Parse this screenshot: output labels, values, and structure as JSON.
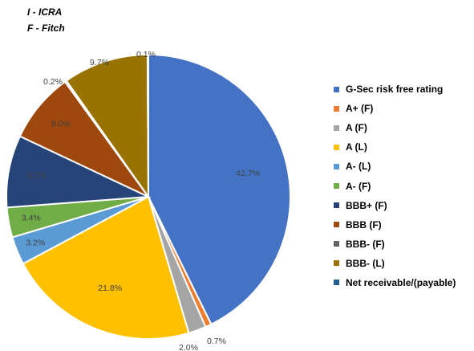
{
  "notes": [
    "I  - ICRA",
    "F - Fitch"
  ],
  "chart_data": {
    "type": "pie",
    "title": "",
    "legend_position": "right",
    "slices": [
      {
        "label": "G-Sec risk free rating",
        "value": 42.7,
        "display": "42.7%",
        "color": "#4472C4"
      },
      {
        "label": "A+ (F)",
        "value": 0.7,
        "display": "0.7%",
        "color": "#ED7D31"
      },
      {
        "label": "A (F)",
        "value": 2.0,
        "display": "2.0%",
        "color": "#A5A5A5"
      },
      {
        "label": "A (L)",
        "value": 21.8,
        "display": "21.8%",
        "color": "#FFC000"
      },
      {
        "label": "A- (L)",
        "value": 3.2,
        "display": "3.2%",
        "color": "#5B9BD5"
      },
      {
        "label": "A- (F)",
        "value": 3.4,
        "display": "3.4%",
        "color": "#70AD47"
      },
      {
        "label": "BBB+ (F)",
        "value": 8.2,
        "display": "8.2%",
        "color": "#264478"
      },
      {
        "label": "BBB (F)",
        "value": 8.0,
        "display": "8.0%",
        "color": "#9E480E"
      },
      {
        "label": "BBB- (F)",
        "value": 0.2,
        "display": "0.2%",
        "color": "#636363"
      },
      {
        "label": "BBB- (L)",
        "value": 9.7,
        "display": "9.7%",
        "color": "#997300"
      },
      {
        "label": "Net receivable/(payable)",
        "value": 0.1,
        "display": "0.1%",
        "color": "#255E91"
      }
    ]
  }
}
